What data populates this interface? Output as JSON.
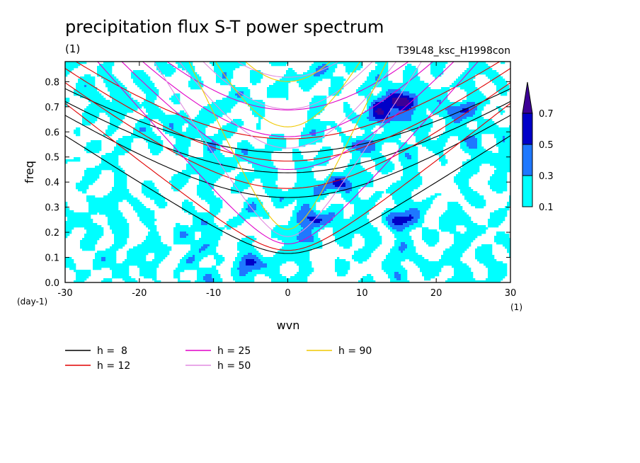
{
  "chart_data": {
    "type": "heatmap",
    "title": "precipitation flux S-T power spectrum",
    "subtitle_left": "(1)",
    "subtitle_right": "T39L48_ksc_H1998con",
    "xlabel": "wvn",
    "ylabel": "freq",
    "x_unit": "(1)",
    "y_unit": "(day-1)",
    "xlim": [
      -30,
      30
    ],
    "ylim": [
      0,
      0.88
    ],
    "x_ticks": [
      -30,
      -20,
      -10,
      0,
      10,
      20,
      30
    ],
    "x_tick_labels": [
      "-30",
      "-20",
      "-10",
      "0",
      "10",
      "20",
      "30"
    ],
    "y_ticks": [
      0,
      0.1,
      0.2,
      0.3,
      0.4,
      0.5,
      0.6,
      0.7,
      0.8
    ],
    "y_tick_labels": [
      "0.0",
      "0.1",
      "0.2",
      "0.3",
      "0.4",
      "0.5",
      "0.6",
      "0.7",
      "0.8"
    ],
    "colorbar": {
      "levels": [
        0.1,
        0.3,
        0.5,
        0.7
      ],
      "labels": [
        "0.1",
        "0.3",
        "0.5",
        "0.7"
      ],
      "colors": [
        "#00ffff",
        "#1e78ff",
        "#0000c8",
        "#3c0096"
      ]
    },
    "field_hotspots": [
      {
        "wvn": 15,
        "freq": 0.72,
        "value": 0.75
      },
      {
        "wvn": 13,
        "freq": 0.66,
        "value": 0.6
      },
      {
        "wvn": 7,
        "freq": 0.39,
        "value": 0.55
      },
      {
        "wvn": 4,
        "freq": 0.25,
        "value": 0.6
      },
      {
        "wvn": 10,
        "freq": 0.55,
        "value": 0.5
      },
      {
        "wvn": 23,
        "freq": 0.69,
        "value": 0.5
      },
      {
        "wvn": 1,
        "freq": 0.18,
        "value": 0.45
      },
      {
        "wvn": -5,
        "freq": 0.08,
        "value": 0.45
      },
      {
        "wvn": 16,
        "freq": 0.25,
        "value": 0.45
      }
    ],
    "series": [
      {
        "name": "h =  8",
        "color": "#000000",
        "equivalent_depth": 8
      },
      {
        "name": "h = 12",
        "color": "#e00000",
        "equivalent_depth": 12
      },
      {
        "name": "h = 25",
        "color": "#e000c8",
        "equivalent_depth": 25
      },
      {
        "name": "h = 50",
        "color": "#e08ce0",
        "equivalent_depth": 50
      },
      {
        "name": "h = 90",
        "color": "#f0c800",
        "equivalent_depth": 90
      }
    ]
  }
}
